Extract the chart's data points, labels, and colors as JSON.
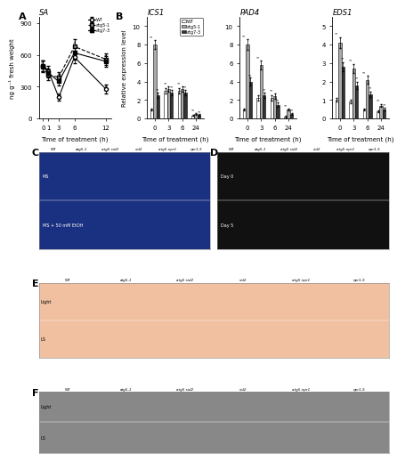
{
  "panel_A": {
    "title": "SA",
    "xlabel": "Time of treatment (h)",
    "ylabel": "ng g⁻¹ fresh weight",
    "xticks": [
      0,
      1,
      3,
      6,
      12
    ],
    "ylim": [
      0,
      960
    ],
    "yticks": [
      0,
      300,
      600,
      900
    ],
    "WT": [
      500,
      450,
      200,
      580,
      280
    ],
    "atg5": [
      490,
      410,
      390,
      680,
      560
    ],
    "atg7": [
      500,
      430,
      350,
      620,
      540
    ],
    "WT_err": [
      50,
      45,
      30,
      60,
      40
    ],
    "atg5_err": [
      55,
      50,
      45,
      70,
      55
    ],
    "atg7_err": [
      50,
      45,
      40,
      65,
      50
    ],
    "legend_labels": [
      "WT",
      "atg5-1",
      "atg7-3"
    ]
  },
  "panel_B_ICS1": {
    "title": "ICS1",
    "xlabel": "Time of treatment (h)",
    "ylabel": "Relative expression level",
    "xtick_labels": [
      "0",
      "3",
      "6",
      "24"
    ],
    "ylim": [
      0,
      11
    ],
    "yticks": [
      0,
      2,
      4,
      6,
      8,
      10
    ],
    "WT": [
      1.0,
      3.0,
      3.0,
      0.3
    ],
    "atg5": [
      8.0,
      3.2,
      3.2,
      0.5
    ],
    "atg7": [
      2.5,
      2.8,
      2.8,
      0.4
    ],
    "WT_err": [
      0.1,
      0.3,
      0.3,
      0.05
    ],
    "atg5_err": [
      0.5,
      0.3,
      0.3,
      0.08
    ],
    "atg7_err": [
      0.3,
      0.3,
      0.3,
      0.06
    ],
    "bar_colors": [
      "#ffffff",
      "#aaaaaa",
      "#333333"
    ],
    "legend_labels": [
      "WT",
      "atg5-1",
      "atg7-3"
    ]
  },
  "panel_B_PAD4": {
    "title": "PAD4",
    "xlabel": "Time of treatment (h)",
    "xtick_labels": [
      "0",
      "3",
      "6",
      "24"
    ],
    "ylim": [
      0,
      11
    ],
    "yticks": [
      0,
      2,
      4,
      6,
      8,
      10
    ],
    "WT": [
      1.0,
      2.2,
      2.2,
      0.2
    ],
    "atg5": [
      8.0,
      5.8,
      2.4,
      1.0
    ],
    "atg7": [
      4.0,
      2.5,
      1.5,
      0.5
    ],
    "WT_err": [
      0.1,
      0.3,
      0.3,
      0.05
    ],
    "atg5_err": [
      0.6,
      0.5,
      0.3,
      0.1
    ],
    "atg7_err": [
      0.4,
      0.3,
      0.2,
      0.08
    ],
    "bar_colors": [
      "#ffffff",
      "#aaaaaa",
      "#333333"
    ]
  },
  "panel_B_EDS1": {
    "title": "EDS1",
    "xlabel": "Time of treatment (h)",
    "xtick_labels": [
      "0",
      "3",
      "6",
      "24"
    ],
    "ylim": [
      0,
      5.5
    ],
    "yticks": [
      0,
      1,
      2,
      3,
      4,
      5
    ],
    "WT": [
      1.0,
      0.9,
      0.5,
      0.4
    ],
    "atg5": [
      4.1,
      2.7,
      2.1,
      0.7
    ],
    "atg7": [
      2.8,
      1.8,
      1.3,
      0.5
    ],
    "WT_err": [
      0.1,
      0.1,
      0.05,
      0.05
    ],
    "atg5_err": [
      0.3,
      0.25,
      0.2,
      0.08
    ],
    "atg7_err": [
      0.25,
      0.2,
      0.15,
      0.06
    ],
    "bar_colors": [
      "#ffffff",
      "#aaaaaa",
      "#333333"
    ]
  },
  "figure_bg": "#ffffff",
  "fontsize_small": 5,
  "fontsize_medium": 6,
  "fontsize_label": 8,
  "genotypes": [
    "WT",
    "atg5-1",
    "atg5 sid2",
    "sid2",
    "atg5 npr1",
    "npr1-5"
  ]
}
